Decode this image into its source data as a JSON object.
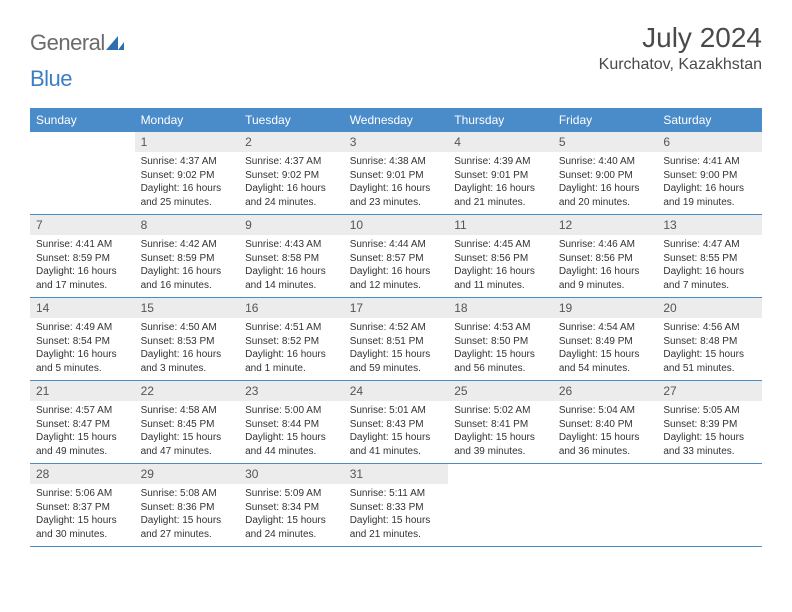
{
  "header": {
    "logo_general": "General",
    "logo_blue": "Blue",
    "month_title": "July 2024",
    "location": "Kurchatov, Kazakhstan"
  },
  "style": {
    "header_bg": "#4a8bc9",
    "header_text": "#ffffff",
    "daynum_bg": "#ececec",
    "row_divider": "#4a8bc9",
    "logo_gray": "#6b6b6b",
    "logo_blue": "#3b7fc4"
  },
  "weekdays": [
    "Sunday",
    "Monday",
    "Tuesday",
    "Wednesday",
    "Thursday",
    "Friday",
    "Saturday"
  ],
  "rows": [
    [
      null,
      {
        "n": "1",
        "sr": "Sunrise: 4:37 AM",
        "ss": "Sunset: 9:02 PM",
        "d1": "Daylight: 16 hours",
        "d2": "and 25 minutes."
      },
      {
        "n": "2",
        "sr": "Sunrise: 4:37 AM",
        "ss": "Sunset: 9:02 PM",
        "d1": "Daylight: 16 hours",
        "d2": "and 24 minutes."
      },
      {
        "n": "3",
        "sr": "Sunrise: 4:38 AM",
        "ss": "Sunset: 9:01 PM",
        "d1": "Daylight: 16 hours",
        "d2": "and 23 minutes."
      },
      {
        "n": "4",
        "sr": "Sunrise: 4:39 AM",
        "ss": "Sunset: 9:01 PM",
        "d1": "Daylight: 16 hours",
        "d2": "and 21 minutes."
      },
      {
        "n": "5",
        "sr": "Sunrise: 4:40 AM",
        "ss": "Sunset: 9:00 PM",
        "d1": "Daylight: 16 hours",
        "d2": "and 20 minutes."
      },
      {
        "n": "6",
        "sr": "Sunrise: 4:41 AM",
        "ss": "Sunset: 9:00 PM",
        "d1": "Daylight: 16 hours",
        "d2": "and 19 minutes."
      }
    ],
    [
      {
        "n": "7",
        "sr": "Sunrise: 4:41 AM",
        "ss": "Sunset: 8:59 PM",
        "d1": "Daylight: 16 hours",
        "d2": "and 17 minutes."
      },
      {
        "n": "8",
        "sr": "Sunrise: 4:42 AM",
        "ss": "Sunset: 8:59 PM",
        "d1": "Daylight: 16 hours",
        "d2": "and 16 minutes."
      },
      {
        "n": "9",
        "sr": "Sunrise: 4:43 AM",
        "ss": "Sunset: 8:58 PM",
        "d1": "Daylight: 16 hours",
        "d2": "and 14 minutes."
      },
      {
        "n": "10",
        "sr": "Sunrise: 4:44 AM",
        "ss": "Sunset: 8:57 PM",
        "d1": "Daylight: 16 hours",
        "d2": "and 12 minutes."
      },
      {
        "n": "11",
        "sr": "Sunrise: 4:45 AM",
        "ss": "Sunset: 8:56 PM",
        "d1": "Daylight: 16 hours",
        "d2": "and 11 minutes."
      },
      {
        "n": "12",
        "sr": "Sunrise: 4:46 AM",
        "ss": "Sunset: 8:56 PM",
        "d1": "Daylight: 16 hours",
        "d2": "and 9 minutes."
      },
      {
        "n": "13",
        "sr": "Sunrise: 4:47 AM",
        "ss": "Sunset: 8:55 PM",
        "d1": "Daylight: 16 hours",
        "d2": "and 7 minutes."
      }
    ],
    [
      {
        "n": "14",
        "sr": "Sunrise: 4:49 AM",
        "ss": "Sunset: 8:54 PM",
        "d1": "Daylight: 16 hours",
        "d2": "and 5 minutes."
      },
      {
        "n": "15",
        "sr": "Sunrise: 4:50 AM",
        "ss": "Sunset: 8:53 PM",
        "d1": "Daylight: 16 hours",
        "d2": "and 3 minutes."
      },
      {
        "n": "16",
        "sr": "Sunrise: 4:51 AM",
        "ss": "Sunset: 8:52 PM",
        "d1": "Daylight: 16 hours",
        "d2": "and 1 minute."
      },
      {
        "n": "17",
        "sr": "Sunrise: 4:52 AM",
        "ss": "Sunset: 8:51 PM",
        "d1": "Daylight: 15 hours",
        "d2": "and 59 minutes."
      },
      {
        "n": "18",
        "sr": "Sunrise: 4:53 AM",
        "ss": "Sunset: 8:50 PM",
        "d1": "Daylight: 15 hours",
        "d2": "and 56 minutes."
      },
      {
        "n": "19",
        "sr": "Sunrise: 4:54 AM",
        "ss": "Sunset: 8:49 PM",
        "d1": "Daylight: 15 hours",
        "d2": "and 54 minutes."
      },
      {
        "n": "20",
        "sr": "Sunrise: 4:56 AM",
        "ss": "Sunset: 8:48 PM",
        "d1": "Daylight: 15 hours",
        "d2": "and 51 minutes."
      }
    ],
    [
      {
        "n": "21",
        "sr": "Sunrise: 4:57 AM",
        "ss": "Sunset: 8:47 PM",
        "d1": "Daylight: 15 hours",
        "d2": "and 49 minutes."
      },
      {
        "n": "22",
        "sr": "Sunrise: 4:58 AM",
        "ss": "Sunset: 8:45 PM",
        "d1": "Daylight: 15 hours",
        "d2": "and 47 minutes."
      },
      {
        "n": "23",
        "sr": "Sunrise: 5:00 AM",
        "ss": "Sunset: 8:44 PM",
        "d1": "Daylight: 15 hours",
        "d2": "and 44 minutes."
      },
      {
        "n": "24",
        "sr": "Sunrise: 5:01 AM",
        "ss": "Sunset: 8:43 PM",
        "d1": "Daylight: 15 hours",
        "d2": "and 41 minutes."
      },
      {
        "n": "25",
        "sr": "Sunrise: 5:02 AM",
        "ss": "Sunset: 8:41 PM",
        "d1": "Daylight: 15 hours",
        "d2": "and 39 minutes."
      },
      {
        "n": "26",
        "sr": "Sunrise: 5:04 AM",
        "ss": "Sunset: 8:40 PM",
        "d1": "Daylight: 15 hours",
        "d2": "and 36 minutes."
      },
      {
        "n": "27",
        "sr": "Sunrise: 5:05 AM",
        "ss": "Sunset: 8:39 PM",
        "d1": "Daylight: 15 hours",
        "d2": "and 33 minutes."
      }
    ],
    [
      {
        "n": "28",
        "sr": "Sunrise: 5:06 AM",
        "ss": "Sunset: 8:37 PM",
        "d1": "Daylight: 15 hours",
        "d2": "and 30 minutes."
      },
      {
        "n": "29",
        "sr": "Sunrise: 5:08 AM",
        "ss": "Sunset: 8:36 PM",
        "d1": "Daylight: 15 hours",
        "d2": "and 27 minutes."
      },
      {
        "n": "30",
        "sr": "Sunrise: 5:09 AM",
        "ss": "Sunset: 8:34 PM",
        "d1": "Daylight: 15 hours",
        "d2": "and 24 minutes."
      },
      {
        "n": "31",
        "sr": "Sunrise: 5:11 AM",
        "ss": "Sunset: 8:33 PM",
        "d1": "Daylight: 15 hours",
        "d2": "and 21 minutes."
      },
      null,
      null,
      null
    ]
  ]
}
